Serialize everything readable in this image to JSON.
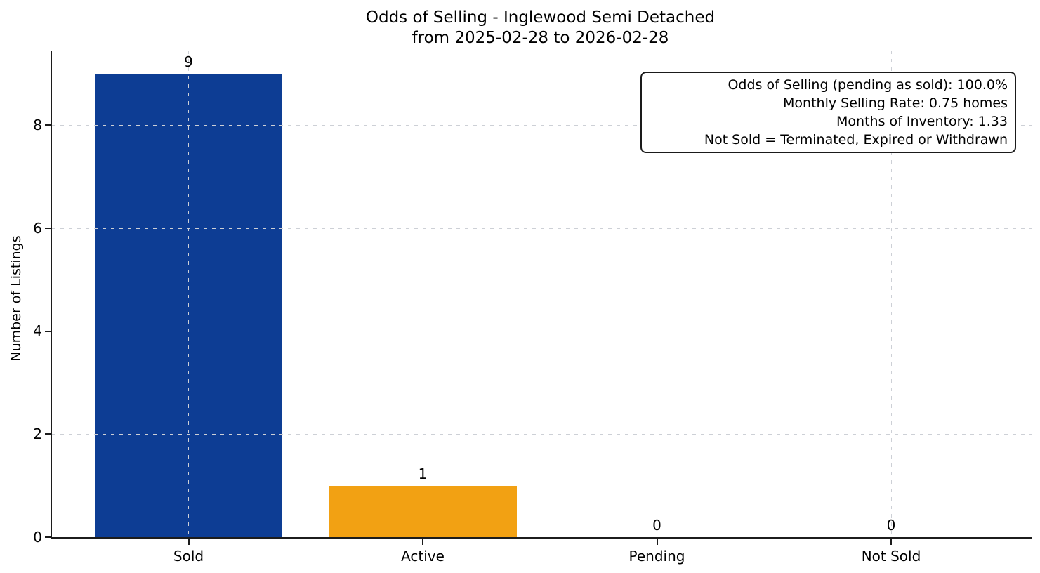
{
  "chart_data": {
    "type": "bar",
    "title": "Odds of Selling - Inglewood Semi Detached",
    "subtitle": "from 2025-02-28 to 2026-02-28",
    "categories": [
      "Sold",
      "Active",
      "Pending",
      "Not Sold"
    ],
    "values": [
      9,
      1,
      0,
      0
    ],
    "value_labels": [
      "9",
      "1",
      "0",
      "0"
    ],
    "bar_colors": [
      "#0d3d94",
      "#f2a113",
      null,
      null
    ],
    "xlabel": "",
    "ylabel": "Number of Listings",
    "yticks": [
      0,
      2,
      4,
      6,
      8
    ],
    "ylim": [
      0,
      9.45
    ],
    "grid": true,
    "grid_style": "dashed",
    "legend": "none",
    "annotation": {
      "position": "top-right",
      "lines": [
        "Odds of Selling (pending as sold): 100.0%",
        "Monthly Selling Rate: 0.75 homes",
        "Months of Inventory: 1.33",
        "Not Sold = Terminated, Expired or Withdrawn"
      ]
    },
    "colors": {
      "axis": "#1c1c1c",
      "grid": "#cdd0d6",
      "text": "#000000",
      "background": "#ffffff",
      "sold_bar": "#0d3d94",
      "active_bar": "#f2a113"
    }
  }
}
